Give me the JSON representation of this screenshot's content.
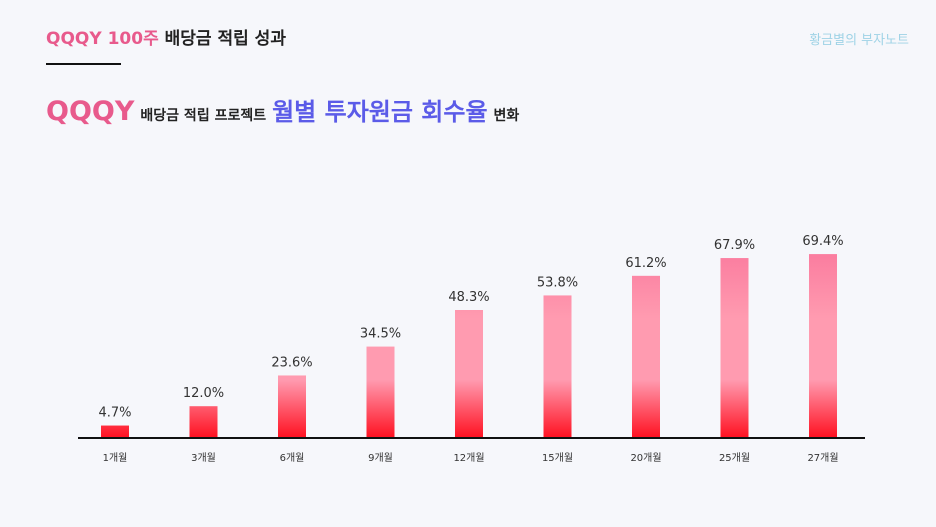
{
  "header": {
    "title_accent": "QQQY 100주",
    "title_rest": " 배당금 적립 성과",
    "brand": "황금별의 부자노트"
  },
  "subtitle": {
    "part1": "QQQY",
    "part2": "배당금 적립 프로젝트",
    "part3": "월별 투자원금 회수율",
    "part4": "변화"
  },
  "colors": {
    "accent_pink": "#e85a8c",
    "accent_blue": "#5b5be8",
    "bar_top": "#f5578a",
    "bar_mid": "#ff9bb0",
    "bar_bottom": "#ff1020"
  },
  "chart_data": {
    "type": "bar",
    "categories": [
      "1개월",
      "3개월",
      "6개월",
      "9개월",
      "12개월",
      "15개월",
      "20개월",
      "25개월",
      "27개월"
    ],
    "values": [
      4.7,
      12.0,
      23.6,
      34.5,
      48.3,
      53.8,
      61.2,
      67.9,
      69.4
    ],
    "value_labels": [
      "4.7%",
      "12.0%",
      "23.6%",
      "34.5%",
      "48.3%",
      "53.8%",
      "61.2%",
      "67.9%",
      "69.4%"
    ],
    "ylim": [
      0,
      100
    ],
    "grid": false,
    "xlabel": "",
    "ylabel": ""
  }
}
